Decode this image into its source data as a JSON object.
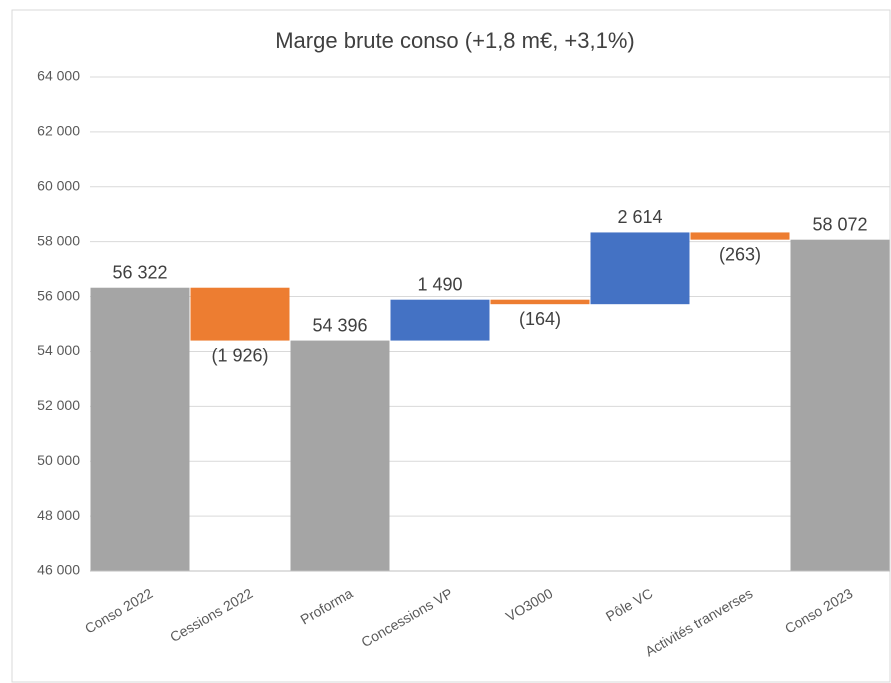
{
  "chart_data": {
    "type": "waterfall",
    "title": "Marge brute conso (+1,8 m€, +3,1%)",
    "categories": [
      "Conso 2022",
      "Cessions 2022",
      "Proforma",
      "Concessions VP",
      "VO3000",
      "Pôle VC",
      "Activités tranverses",
      "Conso 2023"
    ],
    "values": [
      56322,
      -1926,
      54396,
      1490,
      -164,
      2614,
      -263,
      58072
    ],
    "value_labels": [
      "56 322",
      "(1 926)",
      "54 396",
      "1 490",
      "(164)",
      "2 614",
      "(263)",
      "58 072"
    ],
    "measure": [
      "total",
      "relative",
      "total",
      "relative",
      "relative",
      "relative",
      "relative",
      "total"
    ],
    "colors": {
      "total": "#a5a5a5",
      "increase": "#4472c4",
      "decrease": "#ed7d31"
    },
    "ylim": [
      46000,
      64000
    ],
    "yticks": [
      {
        "value": 46000,
        "label": "46 000"
      },
      {
        "value": 48000,
        "label": "48 000"
      },
      {
        "value": 50000,
        "label": "50 000"
      },
      {
        "value": 52000,
        "label": "52 000"
      },
      {
        "value": 54000,
        "label": "54 000"
      },
      {
        "value": 56000,
        "label": "56 000"
      },
      {
        "value": 58000,
        "label": "58 000"
      },
      {
        "value": 60000,
        "label": "60 000"
      },
      {
        "value": 62000,
        "label": "62 000"
      },
      {
        "value": 64000,
        "label": "64 000"
      }
    ],
    "grid": true
  }
}
